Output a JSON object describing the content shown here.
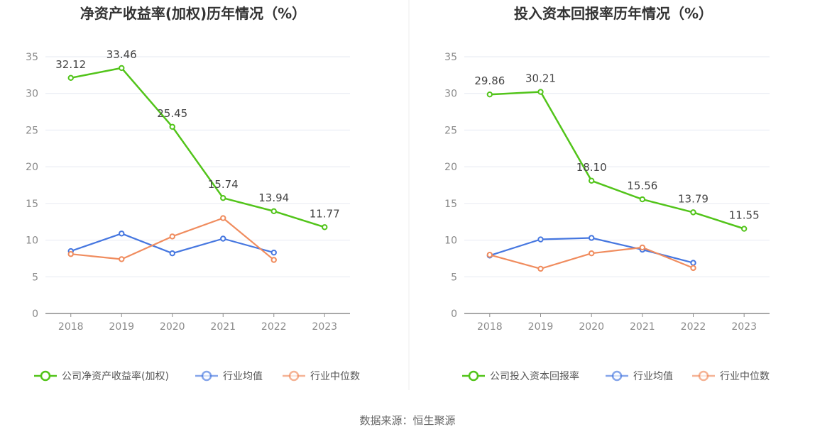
{
  "source": "数据来源：恒生聚源",
  "chart_data": [
    {
      "type": "line",
      "title": "净资产收益率(加权)历年情况（%）",
      "categories": [
        "2018",
        "2019",
        "2020",
        "2021",
        "2022",
        "2023"
      ],
      "ylim": [
        0,
        35
      ],
      "yticks": [
        "0",
        "5",
        "10",
        "15",
        "20",
        "25",
        "30",
        "35"
      ],
      "grid": true,
      "legend_position": "bottom",
      "series": [
        {
          "name": "公司净资产收益率(加权)",
          "color": "#52c41a",
          "values": [
            32.12,
            33.46,
            25.45,
            15.74,
            13.94,
            11.77
          ],
          "labels": [
            "32.12",
            "33.46",
            "25.45",
            "15.74",
            "13.94",
            "11.77"
          ]
        },
        {
          "name": "行业均值",
          "color": "#4677e0",
          "values": [
            8.5,
            10.9,
            8.2,
            10.2,
            8.3,
            null
          ]
        },
        {
          "name": "行业中位数",
          "color": "#f08c5e",
          "values": [
            8.1,
            7.4,
            10.5,
            13.0,
            7.3,
            null
          ]
        }
      ]
    },
    {
      "type": "line",
      "title": "投入资本回报率历年情况（%）",
      "categories": [
        "2018",
        "2019",
        "2020",
        "2021",
        "2022",
        "2023"
      ],
      "ylim": [
        0,
        35
      ],
      "yticks": [
        "0",
        "5",
        "10",
        "15",
        "20",
        "25",
        "30",
        "35"
      ],
      "grid": true,
      "legend_position": "bottom",
      "series": [
        {
          "name": "公司投入资本回报率",
          "color": "#52c41a",
          "values": [
            29.86,
            30.21,
            18.1,
            15.56,
            13.79,
            11.55
          ],
          "labels": [
            "29.86",
            "30.21",
            "18.10",
            "15.56",
            "13.79",
            "11.55"
          ]
        },
        {
          "name": "行业均值",
          "color": "#4677e0",
          "values": [
            7.9,
            10.1,
            10.3,
            8.7,
            6.9,
            null
          ]
        },
        {
          "name": "行业中位数",
          "color": "#f08c5e",
          "values": [
            8.0,
            6.1,
            8.2,
            9.0,
            6.2,
            null
          ]
        }
      ]
    }
  ]
}
